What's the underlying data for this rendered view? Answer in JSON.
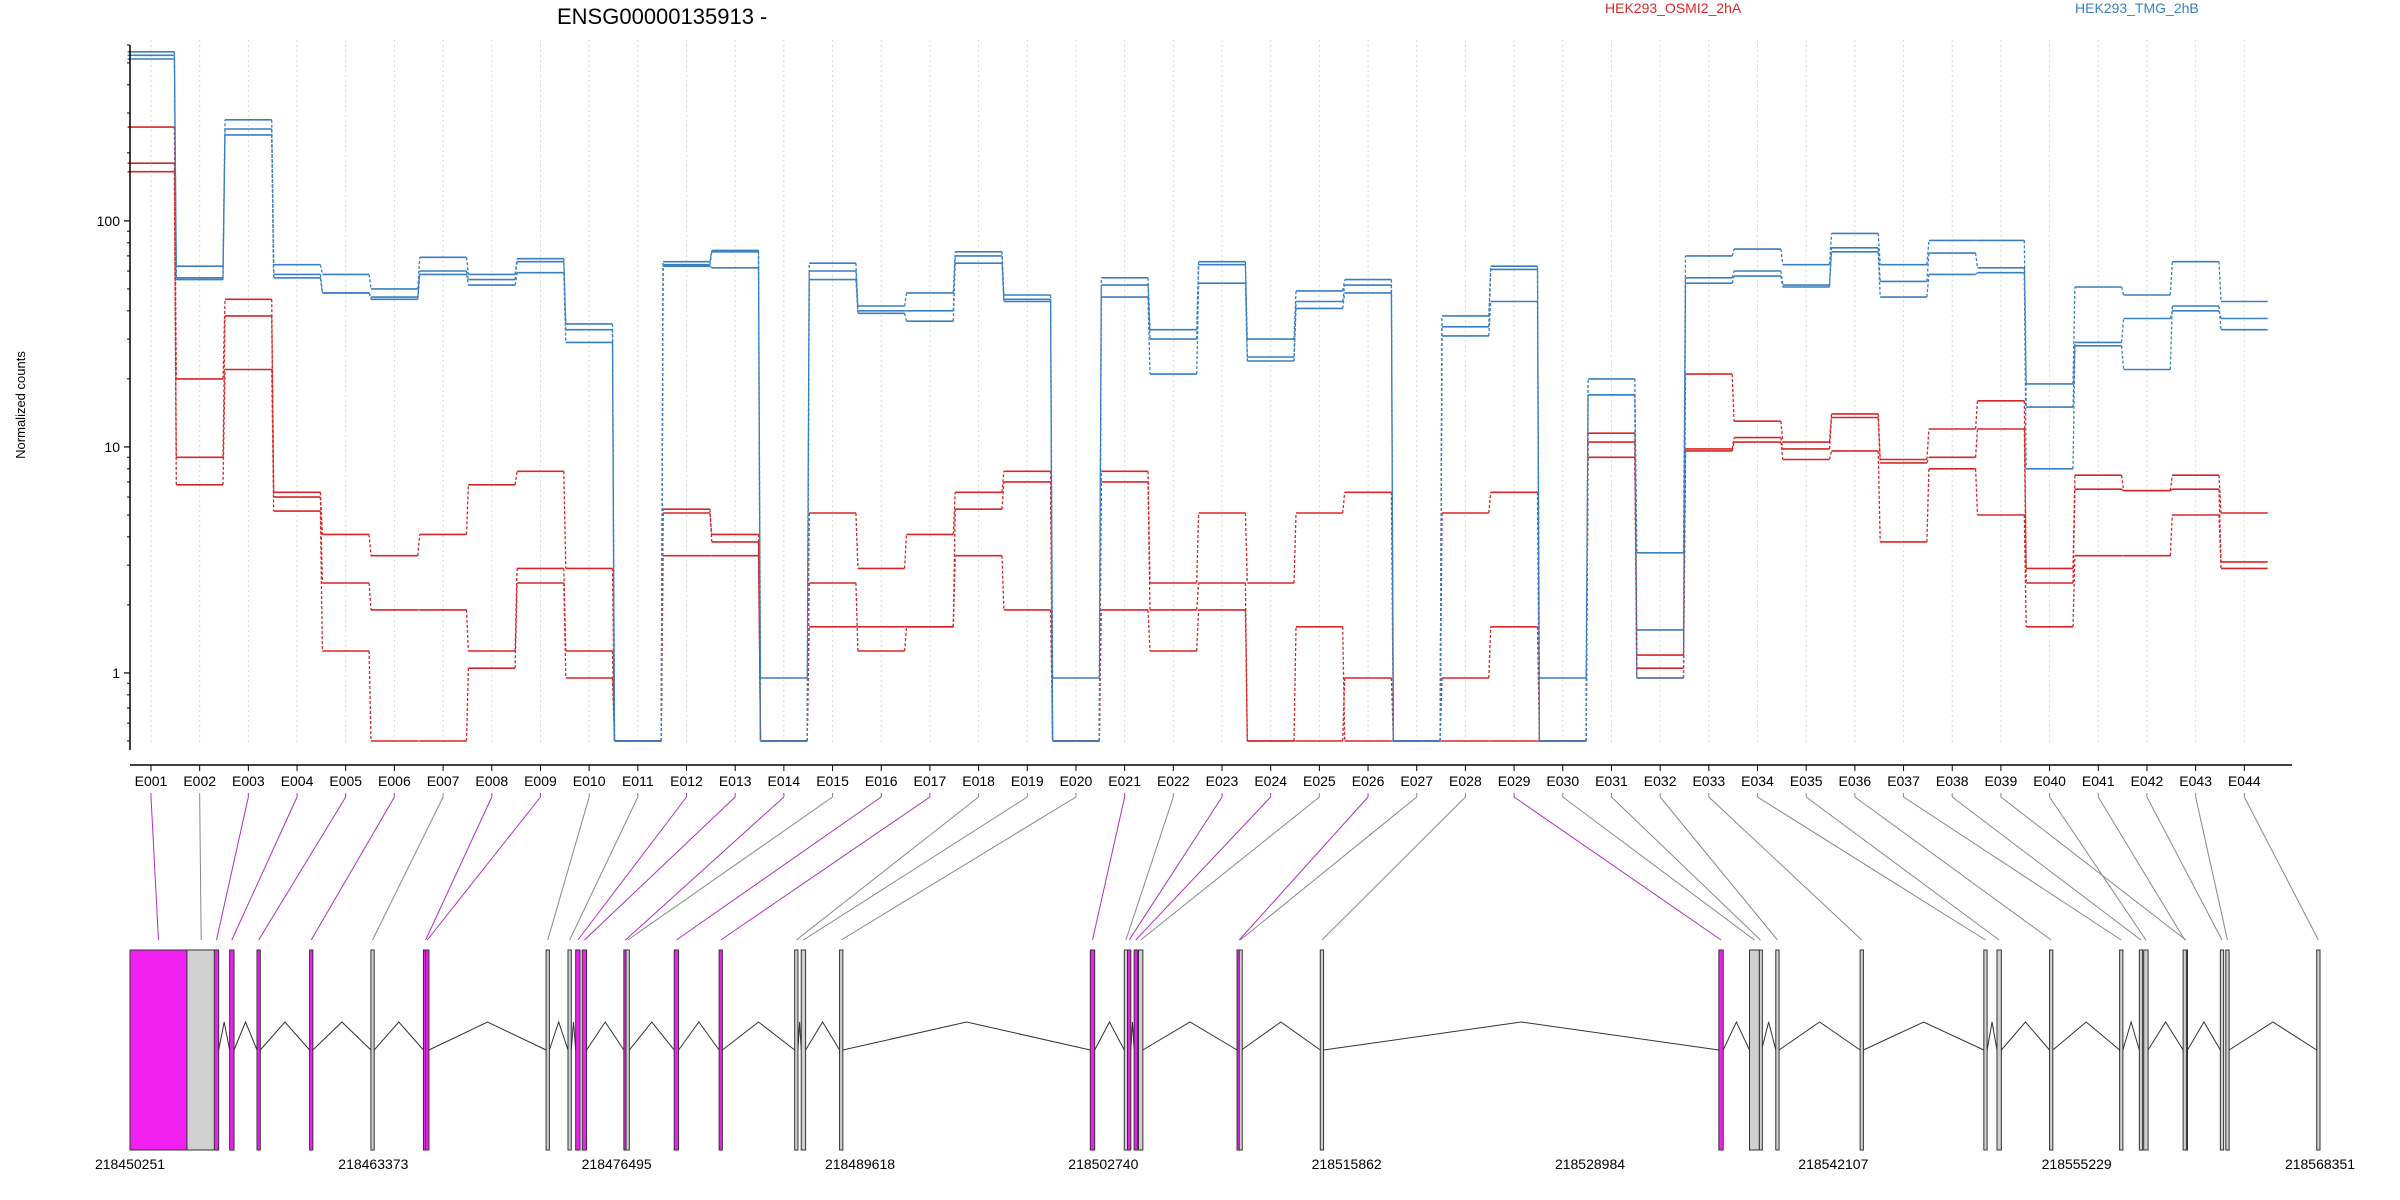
{
  "chart_data": {
    "type": "line",
    "title": "ENSG00000135913 -",
    "ylabel": "Normalized counts",
    "y_scale": "log",
    "ylim": [
      0.48,
      600
    ],
    "y_ticks": [
      {
        "value": 1,
        "label": "1"
      },
      {
        "value": 10,
        "label": "10"
      },
      {
        "value": 100,
        "label": "100"
      }
    ],
    "grid": "vertical dotted lines at each exon",
    "legend_placement": "top",
    "categories": [
      "E001",
      "E002",
      "E003",
      "E004",
      "E005",
      "E006",
      "E007",
      "E008",
      "E009",
      "E010",
      "E011",
      "E012",
      "E013",
      "E014",
      "E015",
      "E016",
      "E017",
      "E018",
      "E019",
      "E020",
      "E021",
      "E022",
      "E023",
      "E024",
      "E025",
      "E026",
      "E027",
      "E028",
      "E029",
      "E030",
      "E031",
      "E032",
      "E033",
      "E034",
      "E035",
      "E036",
      "E037",
      "E038",
      "E039",
      "E040",
      "E041",
      "E042",
      "E043",
      "E044"
    ],
    "groups": [
      {
        "name": "HEK293_OSMI2_2hA",
        "color": "#d62728"
      },
      {
        "name": "HEK293_TMG_2hB",
        "color": "#3a7fc1"
      }
    ],
    "series": [
      {
        "group": 0,
        "values": [
          260,
          20,
          45,
          6.3,
          4.1,
          3.3,
          4.1,
          6.8,
          7.8,
          2.9,
          0.5,
          5.1,
          4.1,
          0.5,
          5.1,
          2.9,
          4.1,
          6.3,
          7.8,
          0.5,
          7.8,
          2.5,
          5.1,
          2.5,
          5.1,
          6.3,
          0.5,
          5.1,
          6.3,
          0.5,
          11.5,
          1.2,
          21,
          13,
          10.5,
          14,
          8.8,
          12,
          16,
          2.9,
          7.5,
          6.4,
          7.5,
          5.1
        ]
      },
      {
        "group": 0,
        "values": [
          180,
          9,
          38,
          6.0,
          2.5,
          1.9,
          1.9,
          1.25,
          2.9,
          1.25,
          0.5,
          5.3,
          3.8,
          0.5,
          2.5,
          1.25,
          1.6,
          5.3,
          7.0,
          0.5,
          7.0,
          1.9,
          2.5,
          0.5,
          1.6,
          0.5,
          0.5,
          0.95,
          1.6,
          0.5,
          9.0,
          1.05,
          9.8,
          11,
          9.8,
          13.5,
          8.5,
          9.0,
          12,
          2.5,
          6.5,
          6.4,
          6.5,
          3.1
        ]
      },
      {
        "group": 0,
        "values": [
          165,
          6.8,
          22,
          5.2,
          1.25,
          0.5,
          0.5,
          1.05,
          2.5,
          0.95,
          0.5,
          3.3,
          3.3,
          0.5,
          1.6,
          1.6,
          1.6,
          3.3,
          1.9,
          0.5,
          1.9,
          1.25,
          1.9,
          0.5,
          0.5,
          0.95,
          0.5,
          0.5,
          0.5,
          0.5,
          10.5,
          0.95,
          9.6,
          10.5,
          8.8,
          9.6,
          3.8,
          8.0,
          5.0,
          1.6,
          3.3,
          3.3,
          5.0,
          2.9
        ]
      },
      {
        "group": 1,
        "values": [
          560,
          63,
          280,
          64,
          58,
          50,
          69,
          58,
          68,
          35,
          0.5,
          66,
          74,
          0.95,
          65,
          42,
          48,
          73,
          47,
          0.95,
          56,
          33,
          66,
          30,
          49,
          55,
          0.5,
          38,
          63,
          0.95,
          20,
          3.4,
          70,
          75,
          64,
          88,
          64,
          82,
          82,
          19,
          51,
          47,
          66,
          44
        ]
      },
      {
        "group": 1,
        "values": [
          540,
          56,
          255,
          58,
          48,
          46,
          60,
          55,
          66,
          33,
          0.5,
          64,
          73,
          0.5,
          60,
          40,
          40,
          70,
          45,
          0.5,
          52,
          30,
          64,
          25,
          44,
          52,
          0.5,
          34,
          61,
          0.5,
          17,
          1.55,
          56,
          60,
          52,
          76,
          54,
          72,
          62,
          15,
          29,
          37,
          40,
          37
        ]
      },
      {
        "group": 1,
        "values": [
          520,
          55,
          240,
          56,
          48,
          45,
          58,
          52,
          59,
          29,
          0.5,
          63,
          62,
          0.5,
          55,
          39,
          36,
          65,
          44,
          0.5,
          46,
          21,
          53,
          24,
          41,
          48,
          0.5,
          31,
          44,
          0.5,
          17,
          0.95,
          53,
          57,
          51,
          73,
          46,
          58,
          59,
          8,
          28,
          22,
          42,
          33
        ]
      }
    ],
    "gene_model": {
      "coordinate_labels": [
        "218450251",
        "218463373",
        "218476495",
        "218489618",
        "218502740",
        "218515862",
        "218528984",
        "218542107",
        "218555229",
        "218568351"
      ],
      "exons": [
        {
          "id": "E001",
          "start": 0,
          "end": 0.026,
          "highlight": true
        },
        {
          "id": "E002",
          "start": 0.026,
          "end": 0.039,
          "highlight": false
        },
        {
          "id": "E003",
          "start": 0.0385,
          "end": 0.0405,
          "highlight": true
        },
        {
          "id": "E004",
          "start": 0.0455,
          "end": 0.0475,
          "highlight": true
        },
        {
          "id": "E005",
          "start": 0.058,
          "end": 0.0595,
          "highlight": true
        },
        {
          "id": "E006",
          "start": 0.082,
          "end": 0.0835,
          "highlight": true
        },
        {
          "id": "E007",
          "start": 0.11,
          "end": 0.1115,
          "highlight": false
        },
        {
          "id": "E008",
          "start": 0.134,
          "end": 0.136,
          "highlight": true
        },
        {
          "id": "E009",
          "start": 0.135,
          "end": 0.1365,
          "highlight": true
        },
        {
          "id": "E010",
          "start": 0.19,
          "end": 0.1915,
          "highlight": false
        },
        {
          "id": "E011",
          "start": 0.2,
          "end": 0.2015,
          "highlight": false
        },
        {
          "id": "E012",
          "start": 0.2035,
          "end": 0.2055,
          "highlight": true
        },
        {
          "id": "E013",
          "start": 0.2065,
          "end": 0.2085,
          "highlight": true
        },
        {
          "id": "E014",
          "start": 0.2255,
          "end": 0.227,
          "highlight": true
        },
        {
          "id": "E015",
          "start": 0.2265,
          "end": 0.228,
          "highlight": false
        },
        {
          "id": "E016",
          "start": 0.2485,
          "end": 0.2505,
          "highlight": true
        },
        {
          "id": "E017",
          "start": 0.269,
          "end": 0.2705,
          "highlight": true
        },
        {
          "id": "E018",
          "start": 0.3035,
          "end": 0.305,
          "highlight": false
        },
        {
          "id": "E019",
          "start": 0.3065,
          "end": 0.3085,
          "highlight": false
        },
        {
          "id": "E020",
          "start": 0.324,
          "end": 0.3255,
          "highlight": false
        },
        {
          "id": "E021",
          "start": 0.4385,
          "end": 0.4405,
          "highlight": true
        },
        {
          "id": "E022",
          "start": 0.454,
          "end": 0.4555,
          "highlight": false
        },
        {
          "id": "E023",
          "start": 0.4555,
          "end": 0.457,
          "highlight": true
        },
        {
          "id": "E024",
          "start": 0.4585,
          "end": 0.46,
          "highlight": true
        },
        {
          "id": "E025",
          "start": 0.4605,
          "end": 0.4625,
          "highlight": false
        },
        {
          "id": "E026",
          "start": 0.5055,
          "end": 0.5075,
          "highlight": true
        },
        {
          "id": "E027",
          "start": 0.5065,
          "end": 0.5075,
          "highlight": false
        },
        {
          "id": "E028",
          "start": 0.5435,
          "end": 0.545,
          "highlight": false
        },
        {
          "id": "E029",
          "start": 0.7255,
          "end": 0.7275,
          "highlight": true
        },
        {
          "id": "E030",
          "start": 0.7395,
          "end": 0.744,
          "highlight": false
        },
        {
          "id": "E031",
          "start": 0.744,
          "end": 0.745,
          "highlight": false
        },
        {
          "id": "E032",
          "start": 0.7515,
          "end": 0.753,
          "highlight": false
        },
        {
          "id": "E033",
          "start": 0.79,
          "end": 0.7915,
          "highlight": false
        },
        {
          "id": "E034",
          "start": 0.8465,
          "end": 0.848,
          "highlight": false
        },
        {
          "id": "E035",
          "start": 0.8525,
          "end": 0.8545,
          "highlight": false
        },
        {
          "id": "E036",
          "start": 0.8765,
          "end": 0.878,
          "highlight": false
        },
        {
          "id": "E037",
          "start": 0.9085,
          "end": 0.91,
          "highlight": false
        },
        {
          "id": "E038",
          "start": 0.9175,
          "end": 0.919,
          "highlight": false
        },
        {
          "id": "E039",
          "start": 0.938,
          "end": 0.9395,
          "highlight": false
        },
        {
          "id": "E040",
          "start": 0.9195,
          "end": 0.9215,
          "highlight": false
        },
        {
          "id": "E041",
          "start": 0.9375,
          "end": 0.939,
          "highlight": false
        },
        {
          "id": "E042",
          "start": 0.9545,
          "end": 0.956,
          "highlight": false
        },
        {
          "id": "E043",
          "start": 0.957,
          "end": 0.9585,
          "highlight": false
        },
        {
          "id": "E044",
          "start": 0.9985,
          "end": 1.0,
          "highlight": false
        }
      ],
      "colors": {
        "highlight": "#f020f0",
        "normal": "#d0d0d0",
        "line": "#888888",
        "highlight_line": "#b030c0"
      }
    }
  }
}
